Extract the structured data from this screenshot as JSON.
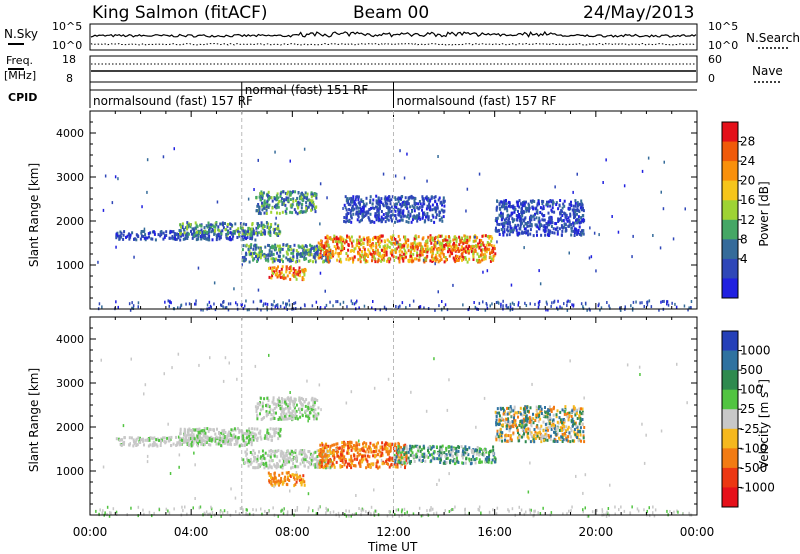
{
  "header": {
    "station": "King Salmon (fitACF)",
    "beam": "Beam 00",
    "date": "24/May/2013"
  },
  "strip_panels": {
    "nsky": {
      "label": "N.Sky",
      "ticks": [
        "10^5",
        "10^0"
      ]
    },
    "nsearch": {
      "label": "N.Search",
      "ticks": [
        "10^5",
        "10^0"
      ]
    },
    "freq": {
      "label_line1": "Freq.",
      "label_line2": "[MHz]",
      "ticks": [
        "18",
        "8"
      ]
    },
    "nave": {
      "label": "Nave",
      "ticks": [
        "60",
        "0"
      ]
    },
    "cpid": {
      "label": "CPID",
      "segments": [
        {
          "start": 0.0,
          "end": 6.0,
          "text": "normalsound (fast) 157 RF"
        },
        {
          "start": 6.0,
          "end": 12.0,
          "text": "normal (fast) 151 RF"
        },
        {
          "start": 12.0,
          "end": 24.0,
          "text": "normalsound (fast) 157 RF"
        }
      ]
    }
  },
  "colorbars": {
    "power": {
      "label": "Power [dB]",
      "ticks": [
        "28",
        "24",
        "20",
        "16",
        "12",
        "8",
        "4"
      ],
      "colors": [
        "#e4101a",
        "#f05a0a",
        "#f9900b",
        "#f6c51b",
        "#9ed334",
        "#45a765",
        "#356b9a",
        "#2f47b8",
        "#2020e0"
      ]
    },
    "velocity": {
      "label": "Velocity [m s",
      "label_sup": "-1",
      "label_tail": "]",
      "ticks": [
        "1000",
        "500",
        "100",
        "25",
        "-25",
        "-100",
        "-500",
        "-1000"
      ],
      "colors": [
        "#2540b8",
        "#2f72a0",
        "#2f8a4f",
        "#52c441",
        "#c8c8c8",
        "#f5b81e",
        "#f27b12",
        "#ec3712",
        "#e6101a"
      ]
    }
  },
  "chart_data": [
    {
      "type": "heatmap",
      "panel": "power",
      "ylabel": "Slant Range [km]",
      "xlabel": "Time UT",
      "x_range": [
        0,
        24
      ],
      "y_range": [
        0,
        4500
      ],
      "y_ticks": [
        "1000",
        "2000",
        "3000",
        "4000"
      ],
      "x_ticks": [
        "00:00",
        "04:00",
        "08:00",
        "12:00",
        "16:00",
        "20:00",
        "00:00"
      ],
      "echo_bands": [
        {
          "t0": 1.0,
          "t1": 6.5,
          "r0": 1600,
          "r1": 1800,
          "level": "low"
        },
        {
          "t0": 3.5,
          "t1": 7.5,
          "r0": 1700,
          "r1": 2000,
          "level": "mid"
        },
        {
          "t0": 6.0,
          "t1": 9.5,
          "r0": 1100,
          "r1": 1500,
          "level": "mid"
        },
        {
          "t0": 7.0,
          "t1": 8.5,
          "r0": 700,
          "r1": 1000,
          "level": "high"
        },
        {
          "t0": 9.0,
          "t1": 16.0,
          "r0": 1100,
          "r1": 1700,
          "level": "high"
        },
        {
          "t0": 6.5,
          "t1": 9.0,
          "r0": 2200,
          "r1": 2700,
          "level": "mid"
        },
        {
          "t0": 10.0,
          "t1": 14.0,
          "r0": 2000,
          "r1": 2600,
          "level": "low"
        },
        {
          "t0": 16.0,
          "t1": 19.5,
          "r0": 1700,
          "r1": 2500,
          "level": "low"
        }
      ]
    },
    {
      "type": "heatmap",
      "panel": "velocity",
      "ylabel": "Slant Range [km]",
      "xlabel": "Time UT",
      "x_range": [
        0,
        24
      ],
      "y_range": [
        0,
        4500
      ],
      "y_ticks": [
        "1000",
        "2000",
        "3000",
        "4000"
      ],
      "x_ticks": [
        "00:00",
        "04:00",
        "08:00",
        "12:00",
        "16:00",
        "20:00",
        "00:00"
      ],
      "echo_bands": [
        {
          "t0": 1.0,
          "t1": 6.5,
          "r0": 1600,
          "r1": 1800,
          "level": "zero"
        },
        {
          "t0": 3.5,
          "t1": 7.5,
          "r0": 1700,
          "r1": 2000,
          "level": "zero"
        },
        {
          "t0": 6.0,
          "t1": 9.5,
          "r0": 1100,
          "r1": 1500,
          "level": "zero"
        },
        {
          "t0": 7.0,
          "t1": 8.5,
          "r0": 700,
          "r1": 1000,
          "level": "neg"
        },
        {
          "t0": 9.0,
          "t1": 12.5,
          "r0": 1100,
          "r1": 1700,
          "level": "neg"
        },
        {
          "t0": 12.0,
          "t1": 16.0,
          "r0": 1200,
          "r1": 1600,
          "level": "pos"
        },
        {
          "t0": 6.5,
          "t1": 9.0,
          "r0": 2200,
          "r1": 2700,
          "level": "zero"
        },
        {
          "t0": 16.0,
          "t1": 19.5,
          "r0": 1700,
          "r1": 2500,
          "level": "mixed"
        }
      ]
    }
  ]
}
